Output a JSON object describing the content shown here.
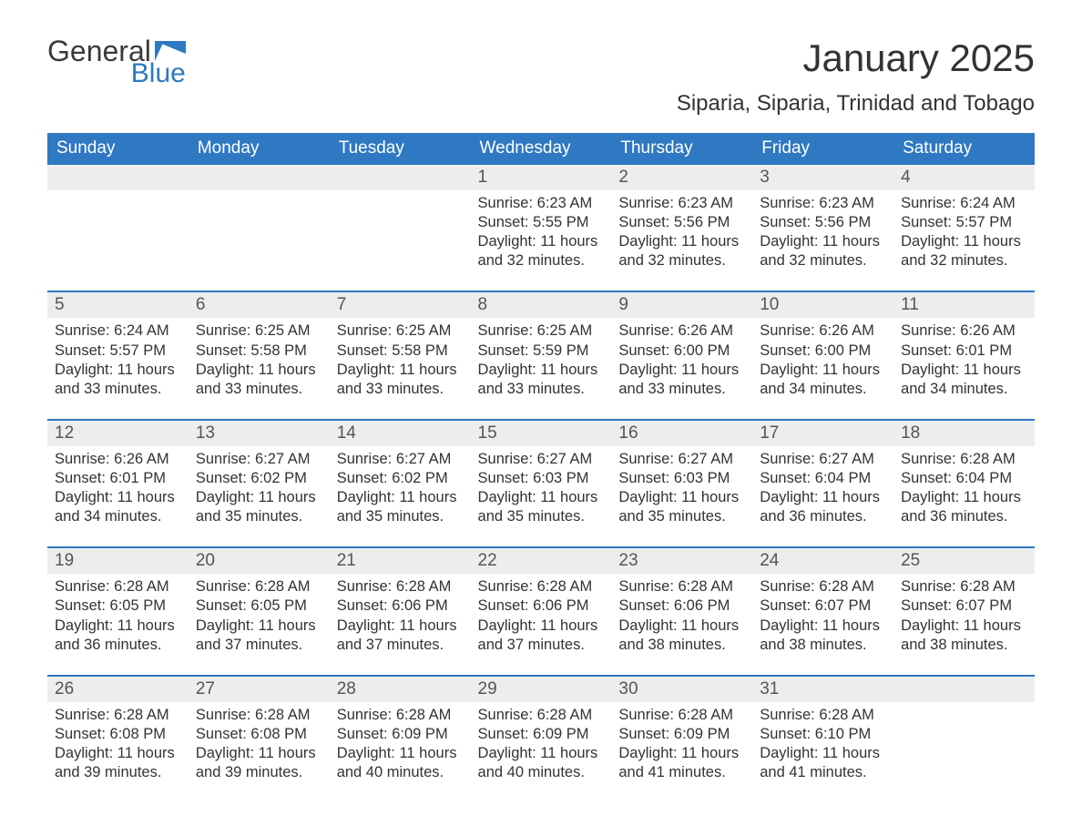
{
  "logo": {
    "word1": "General",
    "word2": "Blue",
    "flag_color": "#2f78c2"
  },
  "title": "January 2025",
  "location": "Siparia, Siparia, Trinidad and Tobago",
  "colors": {
    "header_bg": "#2f78c2",
    "header_text": "#ffffff",
    "daynum_bg": "#ededed",
    "row_border": "#2f78c2",
    "body_text": "#333333"
  },
  "day_headers": [
    "Sunday",
    "Monday",
    "Tuesday",
    "Wednesday",
    "Thursday",
    "Friday",
    "Saturday"
  ],
  "weeks": [
    [
      null,
      null,
      null,
      {
        "n": "1",
        "sunrise": "6:23 AM",
        "sunset": "5:55 PM",
        "daylight": "11 hours and 32 minutes."
      },
      {
        "n": "2",
        "sunrise": "6:23 AM",
        "sunset": "5:56 PM",
        "daylight": "11 hours and 32 minutes."
      },
      {
        "n": "3",
        "sunrise": "6:23 AM",
        "sunset": "5:56 PM",
        "daylight": "11 hours and 32 minutes."
      },
      {
        "n": "4",
        "sunrise": "6:24 AM",
        "sunset": "5:57 PM",
        "daylight": "11 hours and 32 minutes."
      }
    ],
    [
      {
        "n": "5",
        "sunrise": "6:24 AM",
        "sunset": "5:57 PM",
        "daylight": "11 hours and 33 minutes."
      },
      {
        "n": "6",
        "sunrise": "6:25 AM",
        "sunset": "5:58 PM",
        "daylight": "11 hours and 33 minutes."
      },
      {
        "n": "7",
        "sunrise": "6:25 AM",
        "sunset": "5:58 PM",
        "daylight": "11 hours and 33 minutes."
      },
      {
        "n": "8",
        "sunrise": "6:25 AM",
        "sunset": "5:59 PM",
        "daylight": "11 hours and 33 minutes."
      },
      {
        "n": "9",
        "sunrise": "6:26 AM",
        "sunset": "6:00 PM",
        "daylight": "11 hours and 33 minutes."
      },
      {
        "n": "10",
        "sunrise": "6:26 AM",
        "sunset": "6:00 PM",
        "daylight": "11 hours and 34 minutes."
      },
      {
        "n": "11",
        "sunrise": "6:26 AM",
        "sunset": "6:01 PM",
        "daylight": "11 hours and 34 minutes."
      }
    ],
    [
      {
        "n": "12",
        "sunrise": "6:26 AM",
        "sunset": "6:01 PM",
        "daylight": "11 hours and 34 minutes."
      },
      {
        "n": "13",
        "sunrise": "6:27 AM",
        "sunset": "6:02 PM",
        "daylight": "11 hours and 35 minutes."
      },
      {
        "n": "14",
        "sunrise": "6:27 AM",
        "sunset": "6:02 PM",
        "daylight": "11 hours and 35 minutes."
      },
      {
        "n": "15",
        "sunrise": "6:27 AM",
        "sunset": "6:03 PM",
        "daylight": "11 hours and 35 minutes."
      },
      {
        "n": "16",
        "sunrise": "6:27 AM",
        "sunset": "6:03 PM",
        "daylight": "11 hours and 35 minutes."
      },
      {
        "n": "17",
        "sunrise": "6:27 AM",
        "sunset": "6:04 PM",
        "daylight": "11 hours and 36 minutes."
      },
      {
        "n": "18",
        "sunrise": "6:28 AM",
        "sunset": "6:04 PM",
        "daylight": "11 hours and 36 minutes."
      }
    ],
    [
      {
        "n": "19",
        "sunrise": "6:28 AM",
        "sunset": "6:05 PM",
        "daylight": "11 hours and 36 minutes."
      },
      {
        "n": "20",
        "sunrise": "6:28 AM",
        "sunset": "6:05 PM",
        "daylight": "11 hours and 37 minutes."
      },
      {
        "n": "21",
        "sunrise": "6:28 AM",
        "sunset": "6:06 PM",
        "daylight": "11 hours and 37 minutes."
      },
      {
        "n": "22",
        "sunrise": "6:28 AM",
        "sunset": "6:06 PM",
        "daylight": "11 hours and 37 minutes."
      },
      {
        "n": "23",
        "sunrise": "6:28 AM",
        "sunset": "6:06 PM",
        "daylight": "11 hours and 38 minutes."
      },
      {
        "n": "24",
        "sunrise": "6:28 AM",
        "sunset": "6:07 PM",
        "daylight": "11 hours and 38 minutes."
      },
      {
        "n": "25",
        "sunrise": "6:28 AM",
        "sunset": "6:07 PM",
        "daylight": "11 hours and 38 minutes."
      }
    ],
    [
      {
        "n": "26",
        "sunrise": "6:28 AM",
        "sunset": "6:08 PM",
        "daylight": "11 hours and 39 minutes."
      },
      {
        "n": "27",
        "sunrise": "6:28 AM",
        "sunset": "6:08 PM",
        "daylight": "11 hours and 39 minutes."
      },
      {
        "n": "28",
        "sunrise": "6:28 AM",
        "sunset": "6:09 PM",
        "daylight": "11 hours and 40 minutes."
      },
      {
        "n": "29",
        "sunrise": "6:28 AM",
        "sunset": "6:09 PM",
        "daylight": "11 hours and 40 minutes."
      },
      {
        "n": "30",
        "sunrise": "6:28 AM",
        "sunset": "6:09 PM",
        "daylight": "11 hours and 41 minutes."
      },
      {
        "n": "31",
        "sunrise": "6:28 AM",
        "sunset": "6:10 PM",
        "daylight": "11 hours and 41 minutes."
      },
      null
    ]
  ],
  "labels": {
    "sunrise": "Sunrise: ",
    "sunset": "Sunset: ",
    "daylight": "Daylight: "
  }
}
